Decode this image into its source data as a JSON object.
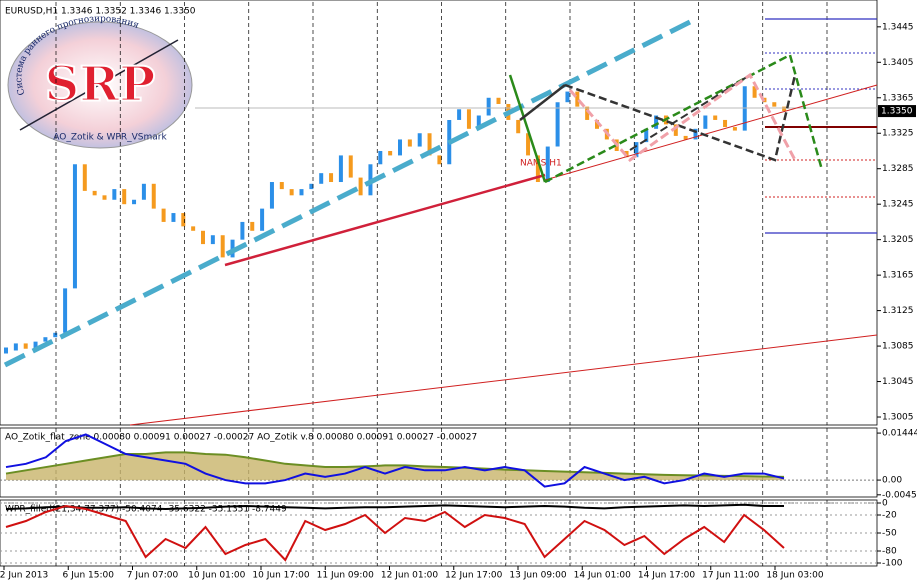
{
  "chart_data": [
    {
      "type": "price-bars",
      "title": "EURUSD,H1  1.3346 1.3352 1.3346 1.3350",
      "annotation": "NAMS H1",
      "up_color": "#2b8fe8",
      "down_color": "#f59a1e",
      "values": [
        1.308,
        1.3088,
        1.3082,
        1.309,
        1.3095,
        1.31,
        1.315,
        1.329,
        1.326,
        1.3255,
        1.325,
        1.3262,
        1.3245,
        1.325,
        1.3268,
        1.324,
        1.3225,
        1.3235,
        1.322,
        1.3215,
        1.32,
        1.321,
        1.3185,
        1.3205,
        1.3225,
        1.3215,
        1.324,
        1.327,
        1.3262,
        1.3255,
        1.3262,
        1.3268,
        1.328,
        1.327,
        1.33,
        1.3275,
        1.3255,
        1.329,
        1.3305,
        1.33,
        1.3318,
        1.331,
        1.3325,
        1.33,
        1.329,
        1.334,
        1.3352,
        1.333,
        1.3345,
        1.3365,
        1.3358,
        1.334,
        1.3325,
        1.33,
        1.327,
        1.331,
        1.336,
        1.3372,
        1.3355,
        1.334,
        1.333,
        1.3318,
        1.3305,
        1.3298,
        1.3315,
        1.333,
        1.3345,
        1.3335,
        1.3322,
        1.3318,
        1.333,
        1.3345,
        1.334,
        1.3332,
        1.3328,
        1.3378,
        1.3365,
        1.336,
        1.3355,
        1.335
      ],
      "ylim": [
        1.2996,
        1.3473
      ],
      "yticks": [
        1.3445,
        1.3405,
        1.3365,
        1.3325,
        1.3285,
        1.3245,
        1.3205,
        1.3165,
        1.3125,
        1.3085,
        1.3045,
        1.3005
      ],
      "current_price": {
        "value": 1.335,
        "label": "1.3350"
      },
      "x_labels": [
        "2 Jun 2013",
        "6 Jun 15:00",
        "7 Jun 07:00",
        "10 Jun 01:00",
        "10 Jun 17:00",
        "11 Jun 09:00",
        "12 Jun 01:00",
        "12 Jun 17:00",
        "13 Jun 09:00",
        "14 Jun 01:00",
        "14 Jun 17:00",
        "17 Jun 11:00",
        "18 Jun 03:00"
      ]
    },
    {
      "type": "line",
      "title": "AO_Zotik_flat_zone 0.00080 0.00091 0.00027 -0.00027  AO_Zotik v.8 0.00080 0.00091 0.00027 -0.00027",
      "ylim": [
        -0.0052,
        0.016
      ],
      "yticks": [
        0.01444,
        {
          "value": 0,
          "label": "0.00"
        },
        -0.00453
      ],
      "series": [
        {
          "color": "#6b8e23",
          "fill": "#c8b46a",
          "values": [
            0.002,
            0.003,
            0.004,
            0.005,
            0.006,
            0.007,
            0.008,
            0.008,
            0.0085,
            0.0085,
            0.008,
            0.0078,
            0.007,
            0.006,
            0.005,
            0.0045,
            0.004,
            0.004,
            0.0042,
            0.0045,
            0.0045,
            0.0042,
            0.004,
            0.0038,
            0.0035,
            0.0032,
            0.003,
            0.0028,
            0.0026,
            0.0024,
            0.0022,
            0.002,
            0.0018,
            0.0016,
            0.0015,
            0.0014,
            0.0013,
            0.0012,
            0.0011,
            0.001
          ]
        },
        {
          "color": "#1010e0",
          "values": [
            0.004,
            0.005,
            0.007,
            0.012,
            0.014,
            0.011,
            0.008,
            0.007,
            0.006,
            0.005,
            0.002,
            0.0,
            -0.001,
            -0.001,
            0.0,
            0.002,
            0.001,
            0.002,
            0.004,
            0.002,
            0.004,
            0.003,
            0.003,
            0.004,
            0.003,
            0.004,
            0.003,
            -0.002,
            -0.001,
            0.004,
            0.002,
            0.0,
            0.001,
            -0.001,
            0.0,
            0.002,
            0.001,
            0.002,
            0.002,
            0.0005
          ]
        }
      ]
    },
    {
      "type": "line",
      "title": "WPR_filled(21,34,77,377) -50.4074 -35.6322 -35.1351 -8.7449",
      "ylim": [
        -105,
        5
      ],
      "yticks": [
        0,
        -20,
        -50,
        -80,
        -100
      ],
      "series": [
        {
          "color": "#000000",
          "values": [
            -10,
            -9,
            -7,
            -6,
            -8,
            -8,
            -7,
            -9,
            -10,
            -9,
            -8,
            -6,
            -5,
            -6,
            -7,
            -8,
            -9,
            -8,
            -7,
            -7,
            -6,
            -5,
            -4,
            -5,
            -6,
            -7,
            -6,
            -5,
            -6,
            -8,
            -9,
            -7,
            -6,
            -5,
            -4,
            -5,
            -4,
            -3,
            -5,
            -5
          ]
        },
        {
          "color": "#d01010",
          "values": [
            -40,
            -30,
            -15,
            -5,
            -10,
            -20,
            -30,
            -90,
            -60,
            -75,
            -40,
            -85,
            -70,
            -60,
            -95,
            -30,
            -45,
            -35,
            -20,
            -50,
            -25,
            -30,
            -15,
            -40,
            -20,
            -25,
            -35,
            -90,
            -60,
            -30,
            -45,
            -70,
            -55,
            -85,
            -60,
            -40,
            -65,
            -20,
            -45,
            -75
          ]
        }
      ]
    }
  ],
  "logo": {
    "letters": "SRP",
    "arc_text": "Система раннего прогнозирования",
    "subtitle": "AO_Zotik & WPR_VSmark"
  }
}
